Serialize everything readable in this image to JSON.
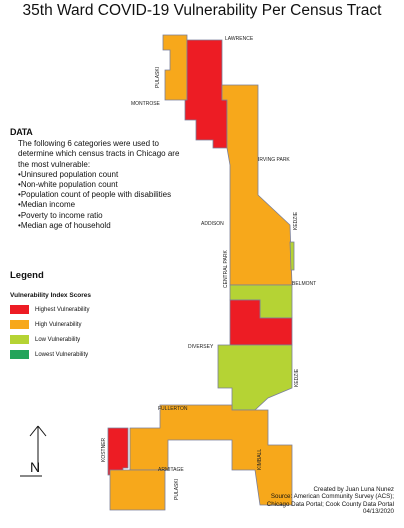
{
  "title": "35th Ward COVID-19 Vulnerability Per Census Tract",
  "streets": [
    "LAWRENCE",
    "PULASKI",
    "MONTROSE",
    "IRVING PARK",
    "ADDISON",
    "KEDZIE",
    "CENTRAL PARK",
    "BELMONT",
    "DIVERSEY",
    "KEDZIE",
    "FULLERTON",
    "KOSTNER",
    "KIMBALL",
    "ARMITAGE",
    "PULASKI"
  ],
  "data_section": {
    "heading": "DATA",
    "intro": "The following 6 categories were used to determine which census tracts in Chicago are the most vulnerable:",
    "bullets": [
      "Uninsured population count",
      "Non-white population count",
      "Population count of people with disabilities",
      "Median income",
      "Poverty to income ratio",
      "Median age of household"
    ]
  },
  "legend": {
    "title": "Legend",
    "subtitle": "Vulnerability Index Scores",
    "items": [
      {
        "label": "Highest Vulnerability",
        "color": "#ed1c24"
      },
      {
        "label": "High Vulnerability",
        "color": "#f7a81b"
      },
      {
        "label": "Low Vulnerability",
        "color": "#b5d334"
      },
      {
        "label": "Lowest Vulnerability",
        "color": "#22a45a"
      }
    ]
  },
  "compass": "N",
  "credits": [
    "Created by Juan Luna Nunez",
    "Source: American Community Survey (ACS);",
    "Chicago Data Portal; Cook County Data Portal",
    "04/13/2020"
  ]
}
